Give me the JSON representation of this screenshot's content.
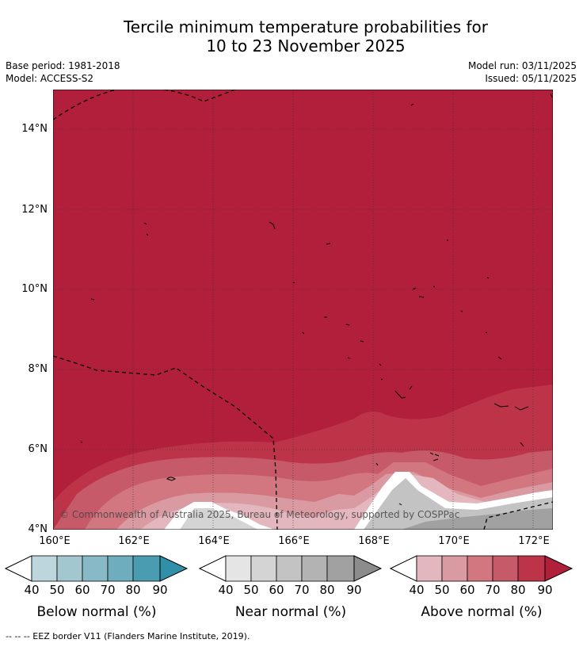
{
  "title_line1": "Tercile minimum temperature probabilities for",
  "title_line2": "10 to 23 November 2025",
  "base_period": "Base period: 1981-2018",
  "model": "Model: ACCESS-S2",
  "model_run": "Model run: 03/11/2025",
  "issued": "Issued: 05/11/2025",
  "lat_labels": [
    "14°N",
    "12°N",
    "10°N",
    "8°N",
    "6°N",
    "4°N"
  ],
  "lon_labels": [
    "160°E",
    "162°E",
    "164°E",
    "166°E",
    "168°E",
    "170°E",
    "172°E"
  ],
  "copyright": "© Commonwealth of Australia 2025, Bureau of Meteorology, supported by COSPPac",
  "colorbars": [
    {
      "title": "Below normal (%)",
      "labels": [
        "40",
        "50",
        "60",
        "70",
        "80",
        "90"
      ],
      "colors": [
        "#bdd5dc",
        "#a3c7cf",
        "#87b9c6",
        "#6eadbe",
        "#4a9cb1",
        "#2f90a8"
      ]
    },
    {
      "title": "Near normal (%)",
      "labels": [
        "40",
        "50",
        "60",
        "70",
        "80",
        "90"
      ],
      "colors": [
        "#e5e5e5",
        "#d4d4d4",
        "#c3c3c3",
        "#b3b3b3",
        "#a1a1a1",
        "#8c8c8c"
      ]
    },
    {
      "title": "Above normal (%)",
      "labels": [
        "40",
        "50",
        "60",
        "70",
        "80",
        "90"
      ],
      "colors": [
        "#e3b7bd",
        "#d99aa2",
        "#d27780",
        "#c75a68",
        "#bd3449",
        "#b21f3a"
      ]
    }
  ],
  "footnote": "--  --  -- EEZ border V11 (Flanders Marine Institute, 2019)."
}
